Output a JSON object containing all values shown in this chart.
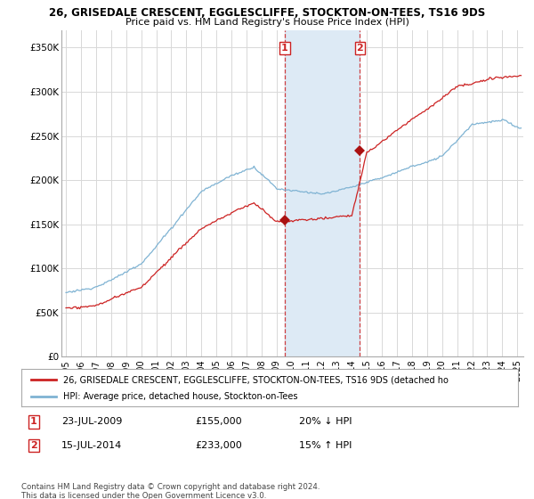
{
  "title1": "26, GRISEDALE CRESCENT, EGGLESCLIFFE, STOCKTON-ON-TEES, TS16 9DS",
  "title2": "Price paid vs. HM Land Registry's House Price Index (HPI)",
  "legend_line1": "26, GRISEDALE CRESCENT, EGGLESCLIFFE, STOCKTON-ON-TEES, TS16 9DS (detached ho",
  "legend_line2": "HPI: Average price, detached house, Stockton-on-Tees",
  "annotation1_label": "1",
  "annotation1_date": "23-JUL-2009",
  "annotation1_price": "£155,000",
  "annotation1_hpi": "20% ↓ HPI",
  "annotation2_label": "2",
  "annotation2_date": "15-JUL-2014",
  "annotation2_price": "£233,000",
  "annotation2_hpi": "15% ↑ HPI",
  "footnote1": "Contains HM Land Registry data © Crown copyright and database right 2024.",
  "footnote2": "This data is licensed under the Open Government Licence v3.0.",
  "ylim": [
    0,
    370000
  ],
  "yticks": [
    0,
    50000,
    100000,
    150000,
    200000,
    250000,
    300000,
    350000
  ],
  "ytick_labels": [
    "£0",
    "£50K",
    "£100K",
    "£150K",
    "£200K",
    "£250K",
    "£300K",
    "£350K"
  ],
  "sale1_x": 2009.55,
  "sale1_y": 155000,
  "sale2_x": 2014.54,
  "sale2_y": 233000,
  "region1_start": 2009.55,
  "region1_end": 2014.54,
  "bg_color": "#ffffff",
  "grid_color": "#d8d8d8",
  "hpi_color": "#7fb3d3",
  "price_color": "#cc2222",
  "region_color": "#ddeaf5",
  "vline_color": "#cc2222",
  "marker_color": "#aa1111",
  "xlim_left": 1994.7,
  "xlim_right": 2025.4
}
